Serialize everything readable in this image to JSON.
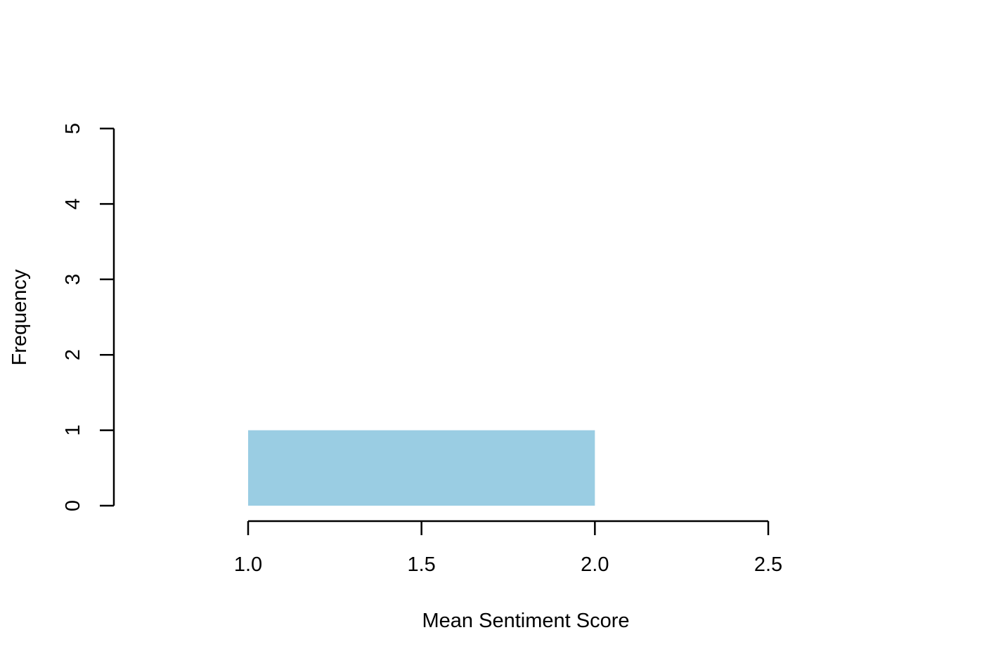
{
  "chart_data": {
    "type": "bar",
    "bins": [
      {
        "start": 1.0,
        "end": 2.0,
        "value": 1
      }
    ],
    "xlabel": "Mean Sentiment Score",
    "ylabel": "Frequency",
    "xlim": [
      1.0,
      2.5
    ],
    "ylim": [
      0,
      5
    ],
    "x_ticks": [
      "1.0",
      "1.5",
      "2.0",
      "2.5"
    ],
    "y_ticks": [
      "0",
      "1",
      "2",
      "3",
      "4",
      "5"
    ],
    "grid": false,
    "bar_color": "#9ACDE3",
    "axis_color": "#000000"
  }
}
